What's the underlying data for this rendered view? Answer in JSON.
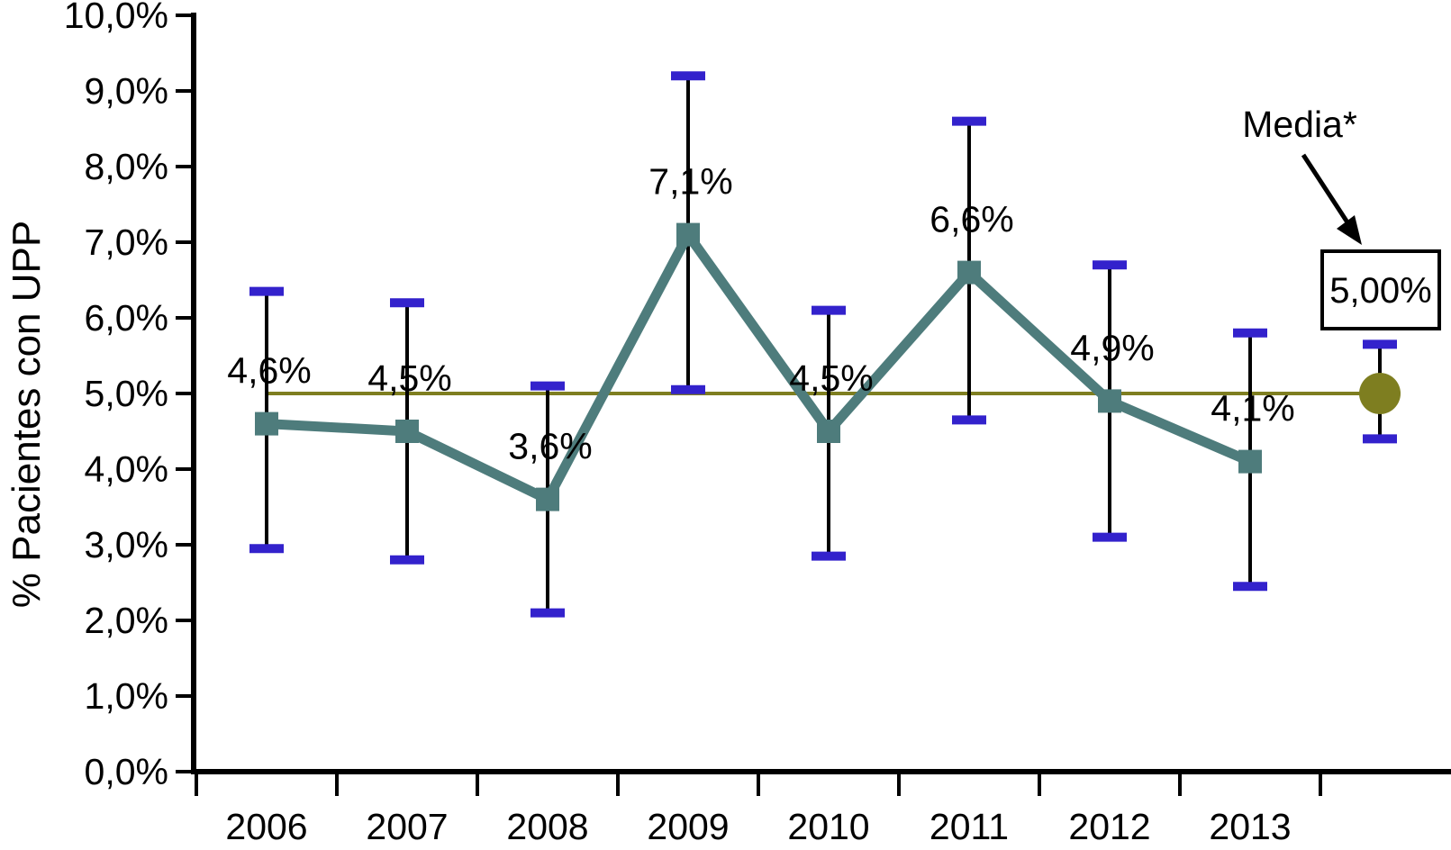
{
  "chart_data": {
    "type": "line",
    "title": "",
    "xlabel": "",
    "ylabel": "% Pacientes con UPP",
    "categories": [
      "2006",
      "2007",
      "2008",
      "2009",
      "2010",
      "2011",
      "2012",
      "2013"
    ],
    "series": [
      {
        "name": "% Pacientes con UPP",
        "values": [
          4.6,
          4.5,
          3.6,
          7.1,
          4.5,
          6.6,
          4.9,
          4.1
        ],
        "point_labels": [
          "4,6%",
          "4,5%",
          "3,6%",
          "7,1%",
          "4,5%",
          "6,6%",
          "4,9%",
          "4,1%"
        ],
        "error_low": [
          2.95,
          2.8,
          2.1,
          5.05,
          2.85,
          4.65,
          3.1,
          2.45
        ],
        "error_high": [
          6.35,
          6.2,
          5.1,
          9.2,
          6.1,
          8.6,
          6.7,
          5.8
        ]
      }
    ],
    "mean_annotation": {
      "label": "Media*",
      "value": 5.0,
      "value_label": "5,00%",
      "error_low": 4.4,
      "error_high": 5.65
    },
    "ylim": [
      0,
      10
    ],
    "ytick_step": 1,
    "ytick_labels": [
      "0,0%",
      "1,0%",
      "2,0%",
      "3,0%",
      "4,0%",
      "5,0%",
      "6,0%",
      "7,0%",
      "8,0%",
      "9,0%",
      "10,0%"
    ],
    "grid": "off",
    "legend": "none",
    "colors": {
      "series_line": "#4e7c7c",
      "marker": "#4e7c7c",
      "mean_line": "#7e7e20",
      "mean_marker": "#7e7e20",
      "error_cap": "#3322cc",
      "error_line": "#000000",
      "axis": "#000000",
      "text": "#000000",
      "background": "#ffffff"
    }
  }
}
